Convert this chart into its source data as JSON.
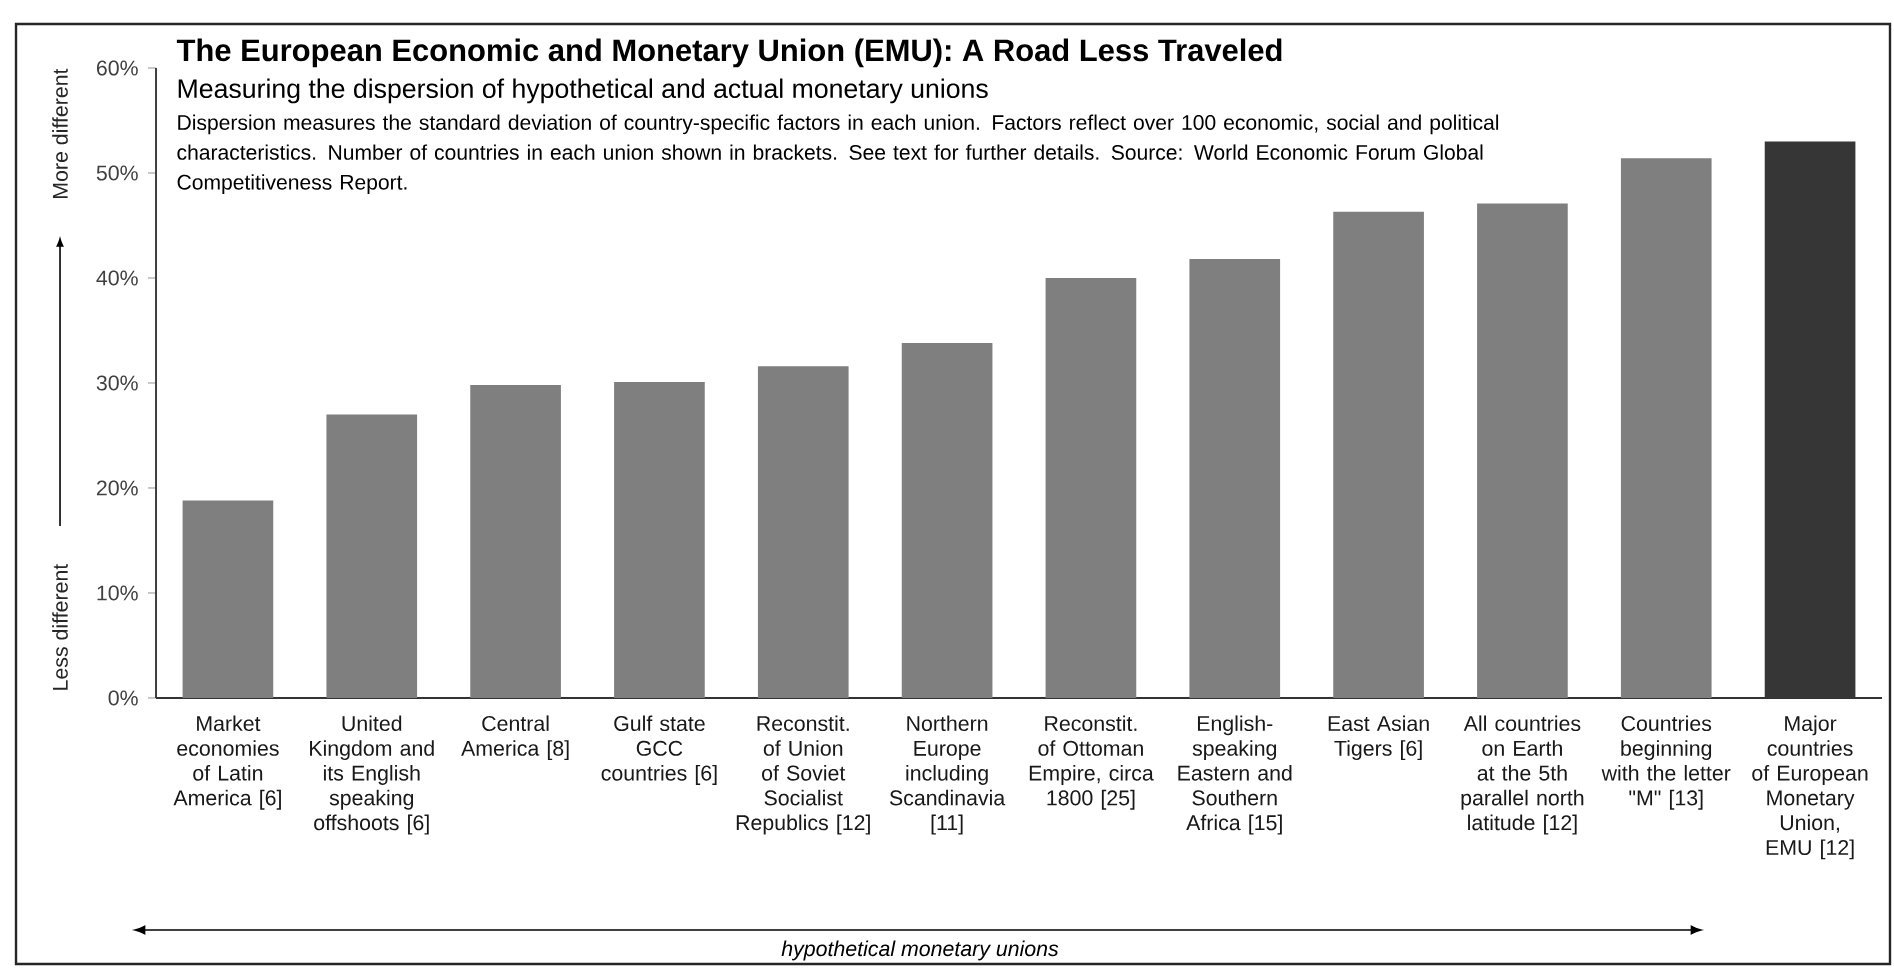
{
  "chart_data": {
    "type": "bar",
    "title": "The European Economic and Monetary Union (EMU): A Road Less Traveled",
    "subtitle": "Measuring the dispersion of hypothetical and actual monetary unions",
    "categories": [
      "Market economies of Latin America [6]",
      "United Kingdom and its English speaking offshoots [6]",
      "Central America [8]",
      "Gulf state GCC countries [6]",
      "Reconstit. of Union of Soviet Socialist Republics [12]",
      "Northern Europe including Scandinavia [11]",
      "Reconstit. of Ottoman Empire, circa 1800 [25]",
      "English-speaking Eastern and Southern Africa [15]",
      "East Asian Tigers [6]",
      "All countries on Earth at the 5th parallel north latitude [12]",
      "Countries beginning with the letter \"M\" [13]",
      "Major countries of European Monetary Union, EMU [12]"
    ],
    "values": [
      18.8,
      27.0,
      29.8,
      30.1,
      31.6,
      33.8,
      40.0,
      41.8,
      46.3,
      47.1,
      51.4,
      53.0
    ],
    "colors": [
      "#7f7f7f",
      "#7f7f7f",
      "#7f7f7f",
      "#7f7f7f",
      "#7f7f7f",
      "#7f7f7f",
      "#7f7f7f",
      "#7f7f7f",
      "#7f7f7f",
      "#7f7f7f",
      "#7f7f7f",
      "#363636"
    ],
    "ylim": [
      0,
      60
    ],
    "yticks": [
      {
        "value": 0,
        "label": "0%"
      },
      {
        "value": 10,
        "label": "10%"
      },
      {
        "value": 20,
        "label": "20%"
      },
      {
        "value": 30,
        "label": "30%"
      },
      {
        "value": 40,
        "label": "40%"
      },
      {
        "value": 50,
        "label": "50%"
      },
      {
        "value": 60,
        "label": "60%"
      }
    ],
    "annotations": [
      "Dispersion measures the standard deviation of country-specific factors in each union.  Factors reflect over 100 economic, social and political characteristics.  Number of countries in each union shown in brackets.  See text for further details.  Source:  World Economic Forum Global Competitiveness Report.",
      "Less different",
      "More different",
      "hypothetical monetary unions"
    ]
  }
}
